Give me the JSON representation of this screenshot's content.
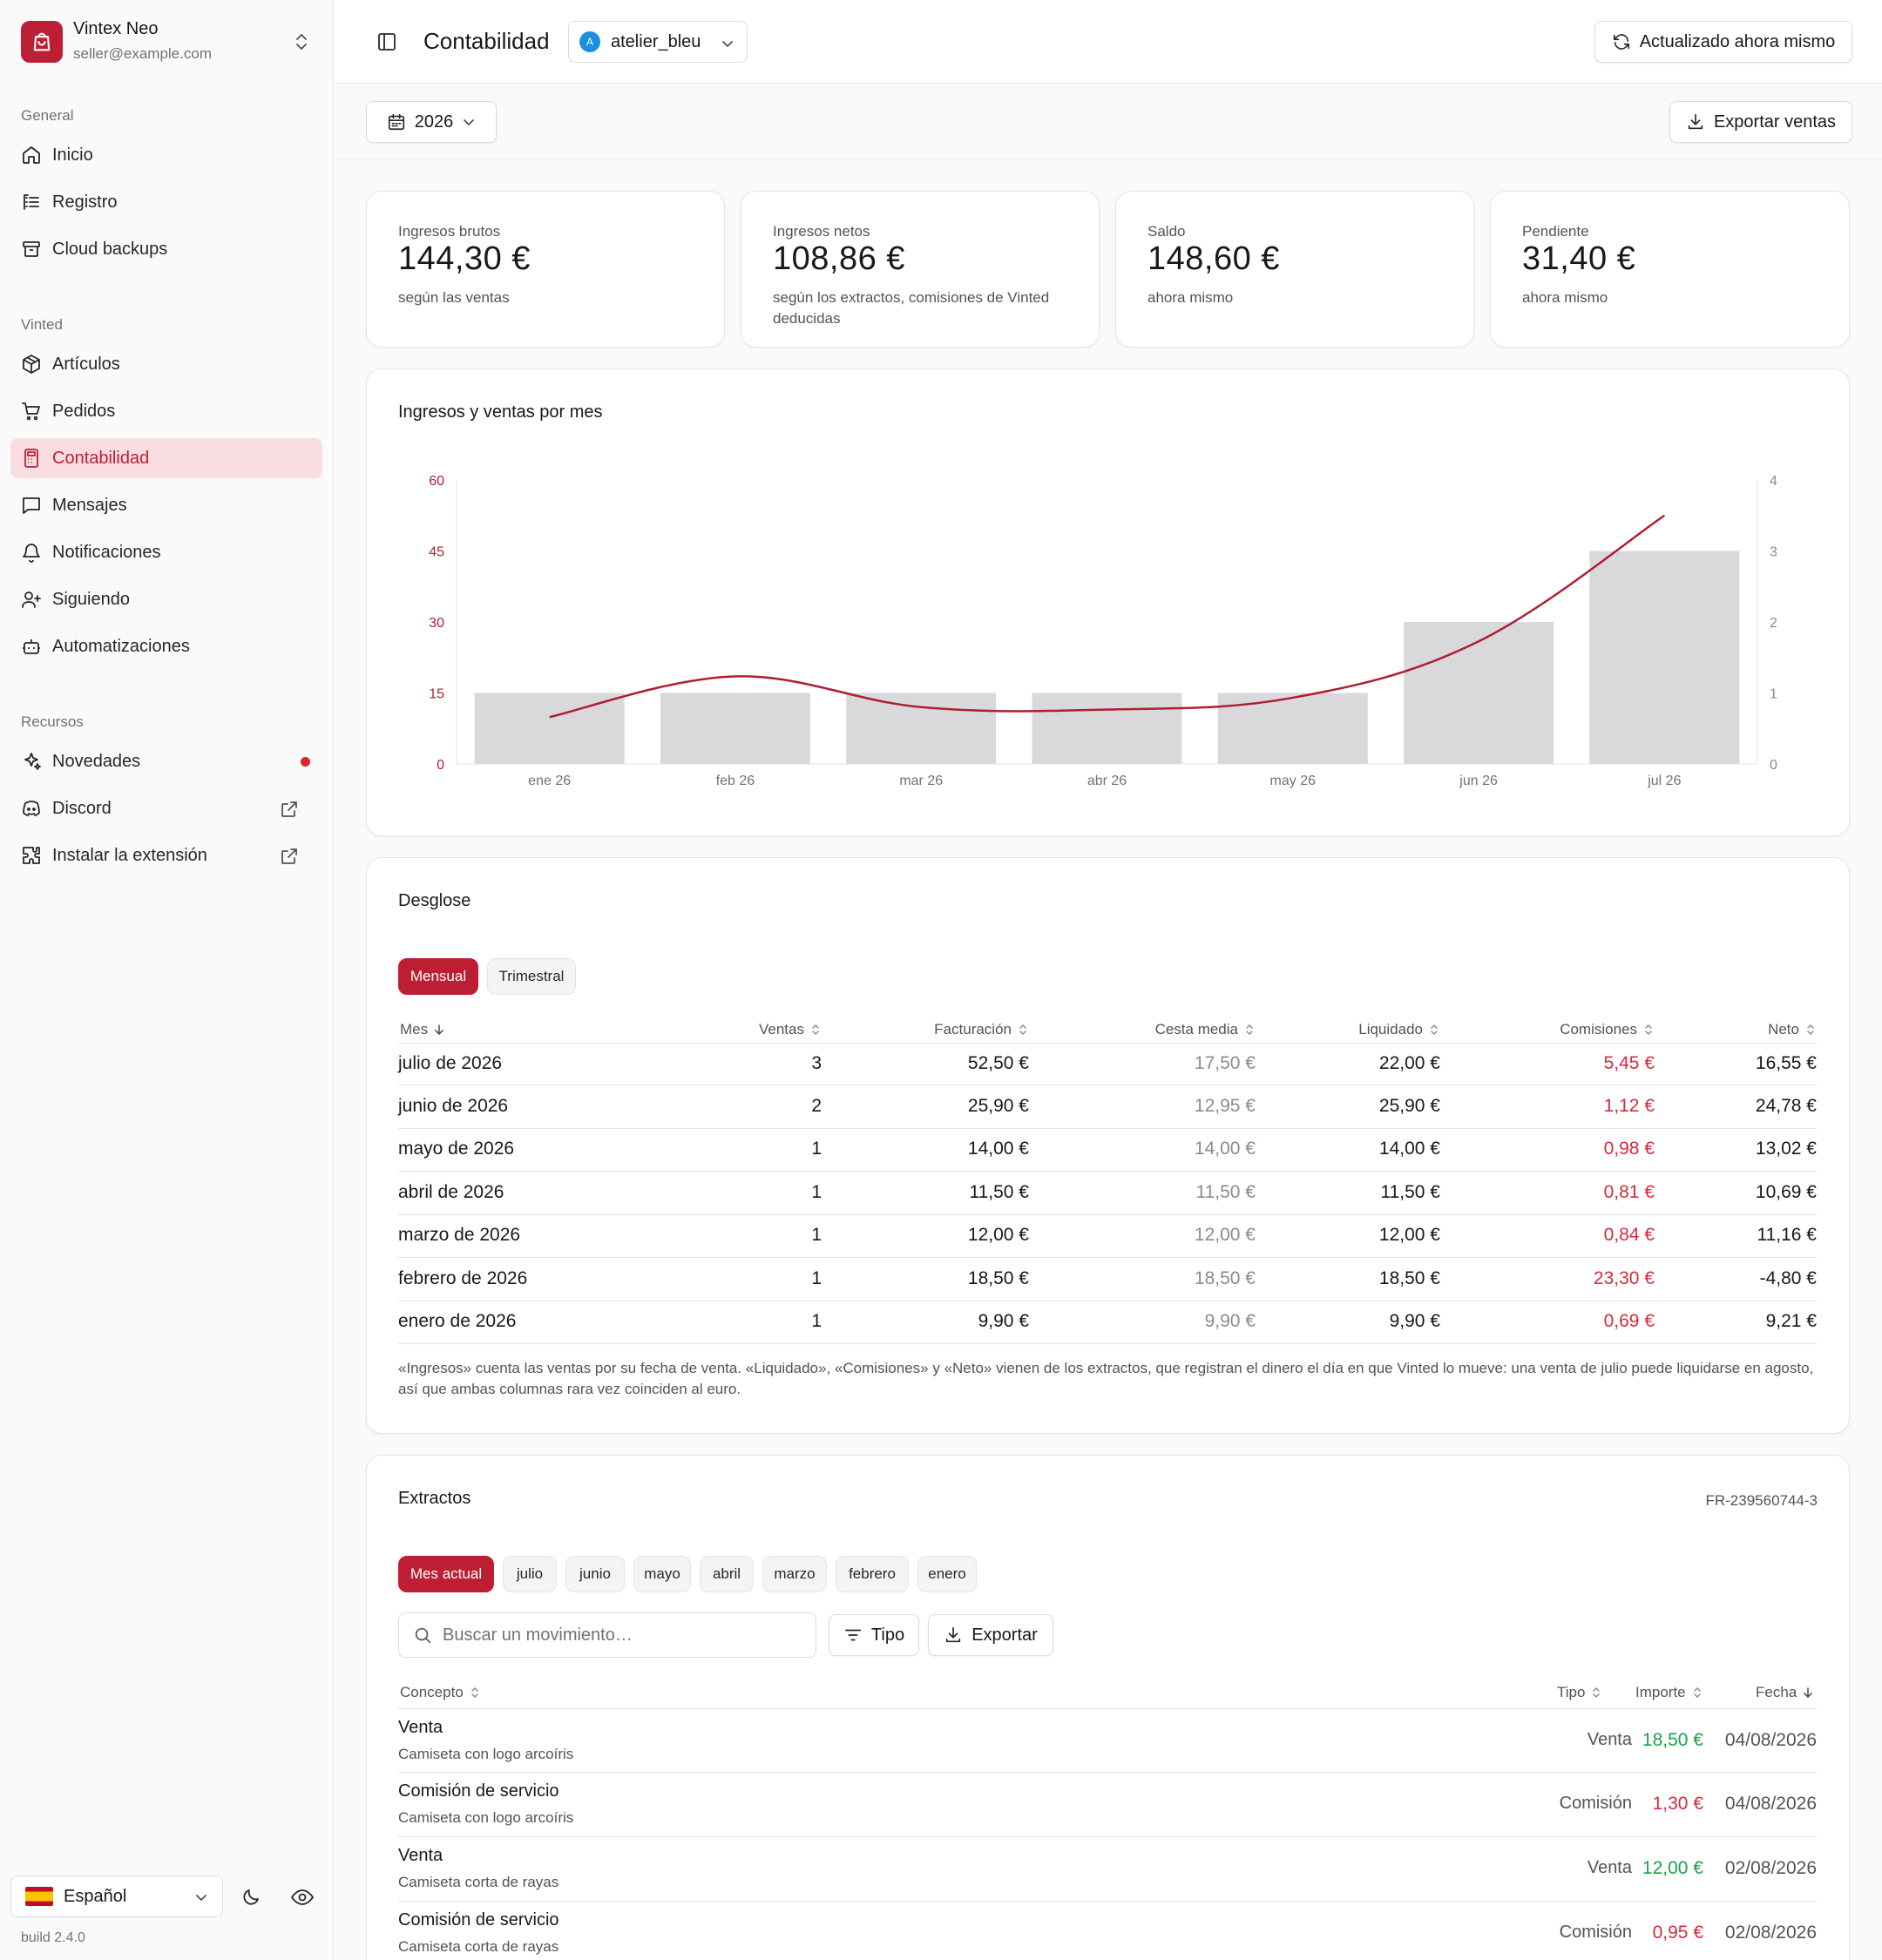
{
  "app": {
    "name": "Vintex Neo",
    "email": "seller@example.com"
  },
  "sidebar": {
    "sections": [
      {
        "label": "General",
        "items": [
          {
            "label": "Inicio",
            "icon": "home-icon"
          },
          {
            "label": "Registro",
            "icon": "log-icon"
          },
          {
            "label": "Cloud backups",
            "icon": "archive-icon"
          }
        ]
      },
      {
        "label": "Vinted",
        "items": [
          {
            "label": "Artículos",
            "icon": "package-icon"
          },
          {
            "label": "Pedidos",
            "icon": "cart-icon"
          },
          {
            "label": "Contabilidad",
            "icon": "calculator-icon",
            "active": true
          },
          {
            "label": "Mensajes",
            "icon": "message-icon"
          },
          {
            "label": "Notificaciones",
            "icon": "bell-icon"
          },
          {
            "label": "Siguiendo",
            "icon": "user-plus-icon"
          },
          {
            "label": "Automatizaciones",
            "icon": "bot-icon"
          }
        ]
      },
      {
        "label": "Recursos",
        "items": [
          {
            "label": "Novedades",
            "icon": "sparkles-icon"
          },
          {
            "label": "Discord",
            "icon": "discord-icon"
          },
          {
            "label": "Instalar la extensión",
            "icon": "puzzle-icon"
          }
        ]
      }
    ],
    "language": "Español",
    "build": "build 2.4.0"
  },
  "header": {
    "title": "Contabilidad",
    "account": "atelier_bleu",
    "account_initial": "A",
    "refresh_label": "Actualizado ahora mismo"
  },
  "toolbar": {
    "year": "2026",
    "export_label": "Exportar ventas"
  },
  "stats": [
    {
      "label": "Ingresos brutos",
      "value": "144,30 €",
      "sub": "según las ventas"
    },
    {
      "label": "Ingresos netos",
      "value": "108,86 €",
      "sub": "según los extractos, comisiones de Vinted deducidas"
    },
    {
      "label": "Saldo",
      "value": "148,60 €",
      "sub": "ahora mismo"
    },
    {
      "label": "Pendiente",
      "value": "31,40 €",
      "sub": "ahora mismo"
    }
  ],
  "chart_data": {
    "type": "bar",
    "title": "Ingresos y ventas por mes",
    "categories": [
      "ene 26",
      "feb 26",
      "mar 26",
      "abr 26",
      "may 26",
      "jun 26",
      "jul 26"
    ],
    "series": [
      {
        "kind": "bar",
        "axis": "right",
        "values": [
          1,
          1,
          1,
          1,
          1,
          2,
          3
        ],
        "color": "#d9d9db"
      },
      {
        "kind": "line",
        "axis": "left",
        "values": [
          9.9,
          18.5,
          12.0,
          11.5,
          14.0,
          25.9,
          52.5
        ],
        "color": "#b01e32"
      }
    ],
    "y_left": {
      "ticks": [
        "0",
        "15",
        "30",
        "45",
        "60"
      ],
      "range": [
        0,
        60
      ],
      "color": "#b01e32"
    },
    "y_right": {
      "ticks": [
        "0",
        "1",
        "2",
        "3",
        "4"
      ],
      "range": [
        0,
        4
      ]
    },
    "grid": false
  },
  "breakdown": {
    "title": "Desglose",
    "tabs": [
      "Mensual",
      "Trimestral"
    ],
    "columns": [
      "Mes",
      "Ventas",
      "Facturación",
      "Cesta media",
      "Liquidado",
      "Comisiones",
      "Neto"
    ],
    "rows": [
      [
        "julio de 2026",
        "3",
        "52,50 €",
        "17,50 €",
        "22,00 €",
        "5,45 €",
        "16,55 €"
      ],
      [
        "junio de 2026",
        "2",
        "25,90 €",
        "12,95 €",
        "25,90 €",
        "1,12 €",
        "24,78 €"
      ],
      [
        "mayo de 2026",
        "1",
        "14,00 €",
        "14,00 €",
        "14,00 €",
        "0,98 €",
        "13,02 €"
      ],
      [
        "abril de 2026",
        "1",
        "11,50 €",
        "11,50 €",
        "11,50 €",
        "0,81 €",
        "10,69 €"
      ],
      [
        "marzo de 2026",
        "1",
        "12,00 €",
        "12,00 €",
        "12,00 €",
        "0,84 €",
        "11,16 €"
      ],
      [
        "febrero de 2026",
        "1",
        "18,50 €",
        "18,50 €",
        "18,50 €",
        "23,30 €",
        "-4,80 €"
      ],
      [
        "enero de 2026",
        "1",
        "9,90 €",
        "9,90 €",
        "9,90 €",
        "0,69 €",
        "9,21 €"
      ]
    ],
    "note": "«Ingresos» cuenta las ventas por su fecha de venta. «Liquidado», «Comisiones» y «Neto» vienen de los extractos, que registran el dinero el día en que Vinted lo mueve: una venta de julio puede liquidarse en agosto, así que ambas columnas rara vez coinciden al euro."
  },
  "statements": {
    "title": "Extractos",
    "ref": "FR-239560744-3",
    "tabs": [
      "Mes actual",
      "julio",
      "junio",
      "mayo",
      "abril",
      "marzo",
      "febrero",
      "enero"
    ],
    "search_placeholder": "Buscar un movimiento…",
    "type_filter": "Tipo",
    "export_label": "Exportar",
    "columns": [
      "Concepto",
      "Tipo",
      "Importe",
      "Fecha"
    ],
    "rows": [
      {
        "title": "Venta",
        "sub": "Camiseta con logo arcoíris",
        "type": "Venta",
        "amount": "18,50 €",
        "date": "04/08/2026",
        "positive": true
      },
      {
        "title": "Comisión de servicio",
        "sub": "Camiseta con logo arcoíris",
        "type": "Comisión",
        "amount": "1,30 €",
        "date": "04/08/2026",
        "positive": false
      },
      {
        "title": "Venta",
        "sub": "Camiseta corta de rayas",
        "type": "Venta",
        "amount": "12,00 €",
        "date": "02/08/2026",
        "positive": true
      },
      {
        "title": "Comisión de servicio",
        "sub": "Camiseta corta de rayas",
        "type": "Comisión",
        "amount": "0,95 €",
        "date": "02/08/2026",
        "positive": false
      }
    ]
  }
}
